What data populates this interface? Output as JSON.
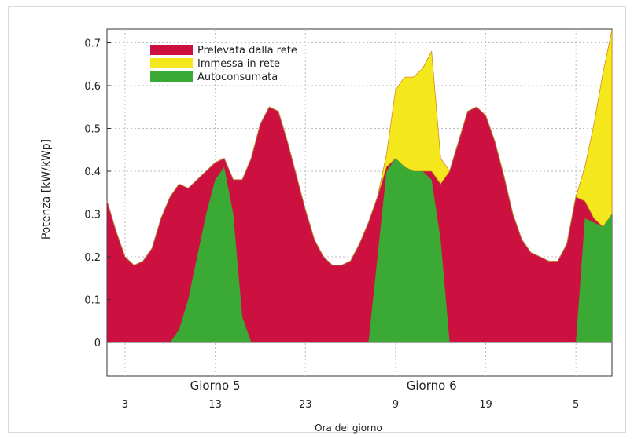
{
  "chart_data": {
    "type": "area",
    "title": "",
    "xlabel": "Ora del giorno",
    "ylabel": "Potenza [kW/kWp]",
    "ylim": [
      0,
      0.73
    ],
    "y_ticks": [
      "0",
      "0.1",
      "0.2",
      "0.3",
      "0.4",
      "0.5",
      "0.6",
      "0.7"
    ],
    "x_hour_ticks": [
      "3",
      "13",
      "23",
      "9",
      "19",
      "5"
    ],
    "x_day_labels": [
      "Giorno 5",
      "Giorno 6"
    ],
    "grid": true,
    "legend_position": "top-left",
    "x_hours": [
      0,
      1,
      2,
      3,
      4,
      5,
      6,
      7,
      8,
      9,
      10,
      11,
      12,
      13,
      14,
      15,
      16,
      17,
      18,
      19,
      20,
      21,
      22,
      23,
      24,
      25,
      26,
      27,
      28,
      29,
      30,
      31,
      32,
      33,
      34,
      35,
      36,
      37,
      38,
      39,
      40,
      41,
      42,
      43,
      44,
      45,
      46,
      47,
      48,
      49,
      50,
      51,
      52,
      53,
      54,
      55,
      56
    ],
    "series": [
      {
        "name": "Prelevata dalla rete",
        "color": "#cc1141",
        "values": [
          0.33,
          0.26,
          0.2,
          0.18,
          0.19,
          0.22,
          0.29,
          0.34,
          0.37,
          0.36,
          0.38,
          0.4,
          0.42,
          0.43,
          0.38,
          0.38,
          0.43,
          0.51,
          0.55,
          0.54,
          0.47,
          0.39,
          0.31,
          0.24,
          0.2,
          0.18,
          0.18,
          0.19,
          0.23,
          0.28,
          0.34,
          0.41,
          0.43,
          0.41,
          0.4,
          0.4,
          0.4,
          0.37,
          0.4,
          0.47,
          0.54,
          0.55,
          0.53,
          0.47,
          0.39,
          0.3,
          0.24,
          0.21,
          0.2,
          0.19,
          0.19,
          0.23,
          0.34,
          0.33,
          0.29,
          0.27,
          0.3
        ]
      },
      {
        "name": "Immessa in rete",
        "color": "#f4e81d",
        "values": [
          0,
          0,
          0,
          0,
          0,
          0,
          0,
          0,
          0,
          0,
          0,
          0,
          0,
          0,
          0,
          0,
          0,
          0,
          0,
          0,
          0,
          0,
          0,
          0,
          0,
          0,
          0,
          0,
          0,
          0,
          0,
          0.03,
          0.16,
          0.21,
          0.22,
          0.24,
          0.28,
          0.06,
          0,
          0,
          0,
          0,
          0,
          0,
          0,
          0,
          0,
          0,
          0,
          0,
          0,
          0,
          0,
          0.08,
          0.22,
          0.36,
          0.43
        ]
      },
      {
        "name": "Autoconsumata",
        "color": "#3aaa35",
        "values": [
          0,
          0,
          0,
          0,
          0,
          0,
          0,
          0,
          0.03,
          0.1,
          0.2,
          0.3,
          0.38,
          0.41,
          0.3,
          0.06,
          0,
          0,
          0,
          0,
          0,
          0,
          0,
          0,
          0,
          0,
          0,
          0,
          0,
          0,
          0.2,
          0.4,
          0.43,
          0.41,
          0.4,
          0.4,
          0.38,
          0.24,
          0,
          0,
          0,
          0,
          0,
          0,
          0,
          0,
          0,
          0,
          0,
          0,
          0,
          0,
          0,
          0.29,
          0.28,
          0.27,
          0.3
        ]
      }
    ]
  }
}
